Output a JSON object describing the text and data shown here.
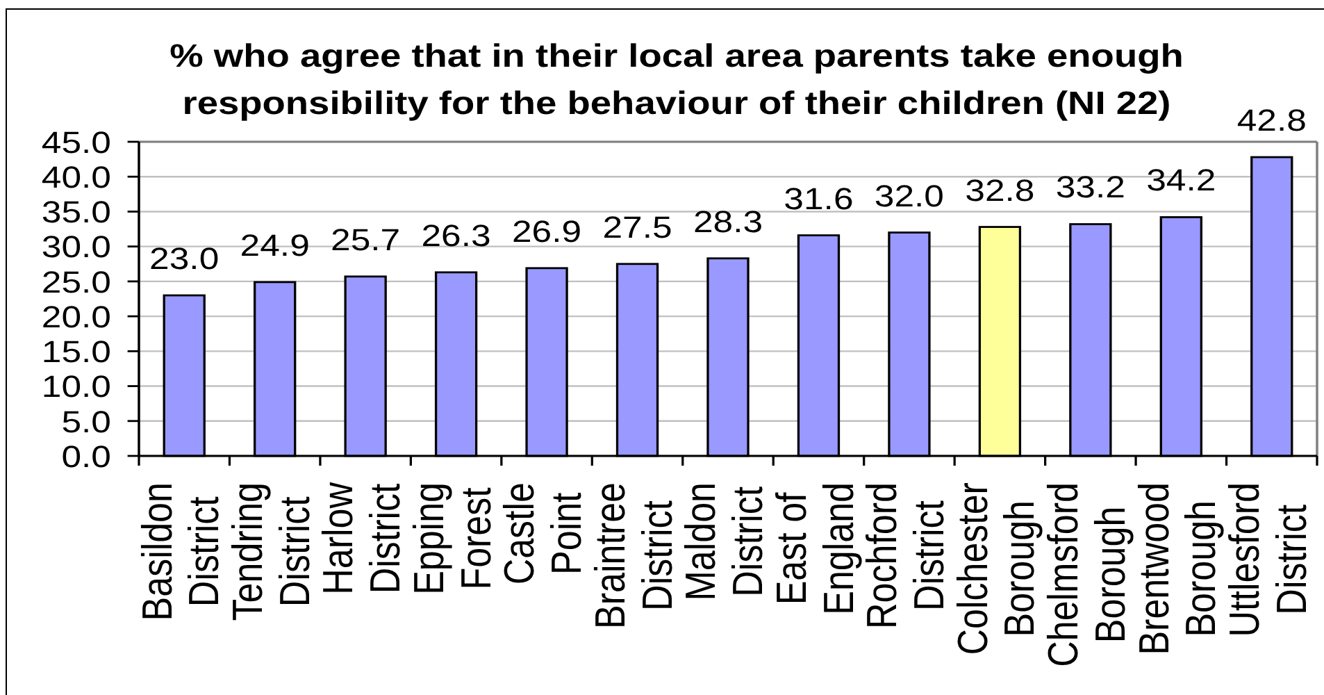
{
  "chart_data": {
    "type": "bar",
    "title": "% who agree that in their local area parents take enough responsibility for the behaviour of their children (NI 22)",
    "categories": [
      "Basildon District",
      "Tendring District",
      "Harlow District",
      "Epping Forest",
      "Castle Point",
      "Braintree District",
      "Maldon District",
      "East of England",
      "Rochford District",
      "Colchester Borough",
      "Chelmsford Borough",
      "Brentwood Borough",
      "Uttlesford District"
    ],
    "values": [
      23.0,
      24.9,
      25.7,
      26.3,
      26.9,
      27.5,
      28.3,
      31.6,
      32.0,
      32.8,
      33.2,
      34.2,
      42.8
    ],
    "value_labels": [
      "23.0",
      "24.9",
      "25.7",
      "26.3",
      "26.9",
      "27.5",
      "28.3",
      "31.6",
      "32.0",
      "32.8",
      "33.2",
      "34.2",
      "42.8"
    ],
    "colors": [
      "#9999ff",
      "#9999ff",
      "#9999ff",
      "#9999ff",
      "#9999ff",
      "#9999ff",
      "#9999ff",
      "#9999ff",
      "#9999ff",
      "#ffff99",
      "#9999ff",
      "#9999ff",
      "#9999ff"
    ],
    "ylim": [
      0,
      45
    ],
    "yticks": [
      {
        "value": 0,
        "label": "0.0"
      },
      {
        "value": 5,
        "label": "5.0"
      },
      {
        "value": 10,
        "label": "10.0"
      },
      {
        "value": 15,
        "label": "15.0"
      },
      {
        "value": 20,
        "label": "20.0"
      },
      {
        "value": 25,
        "label": "25.0"
      },
      {
        "value": 30,
        "label": "30.0"
      },
      {
        "value": 35,
        "label": "35.0"
      },
      {
        "value": 40,
        "label": "40.0"
      },
      {
        "value": 45,
        "label": "45.0"
      }
    ],
    "grid": "y"
  }
}
